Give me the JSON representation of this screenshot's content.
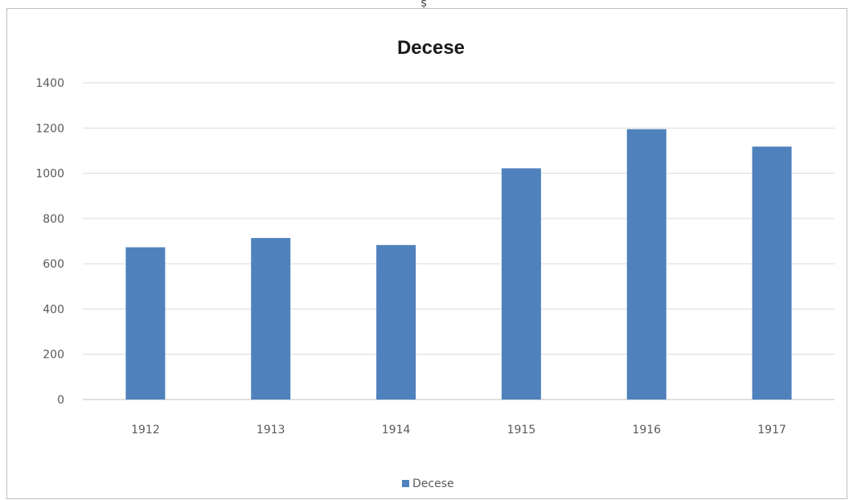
{
  "top_fragment": "ș",
  "chart_data": {
    "type": "bar",
    "title": "Decese",
    "categories": [
      "1912",
      "1913",
      "1914",
      "1915",
      "1916",
      "1917"
    ],
    "series": [
      {
        "name": "Decese",
        "values": [
          673,
          714,
          683,
          1022,
          1195,
          1118
        ],
        "color": "#4f81bd"
      }
    ],
    "ylim": [
      0,
      1400
    ],
    "yticks": [
      "0",
      "200",
      "400",
      "600",
      "800",
      "1000",
      "1200",
      "1400"
    ],
    "grid": true,
    "legend": "bottom",
    "colors": {
      "gridline": "#d9d9d9",
      "axis": "#bfbfbf",
      "tick_text": "#595959"
    }
  }
}
